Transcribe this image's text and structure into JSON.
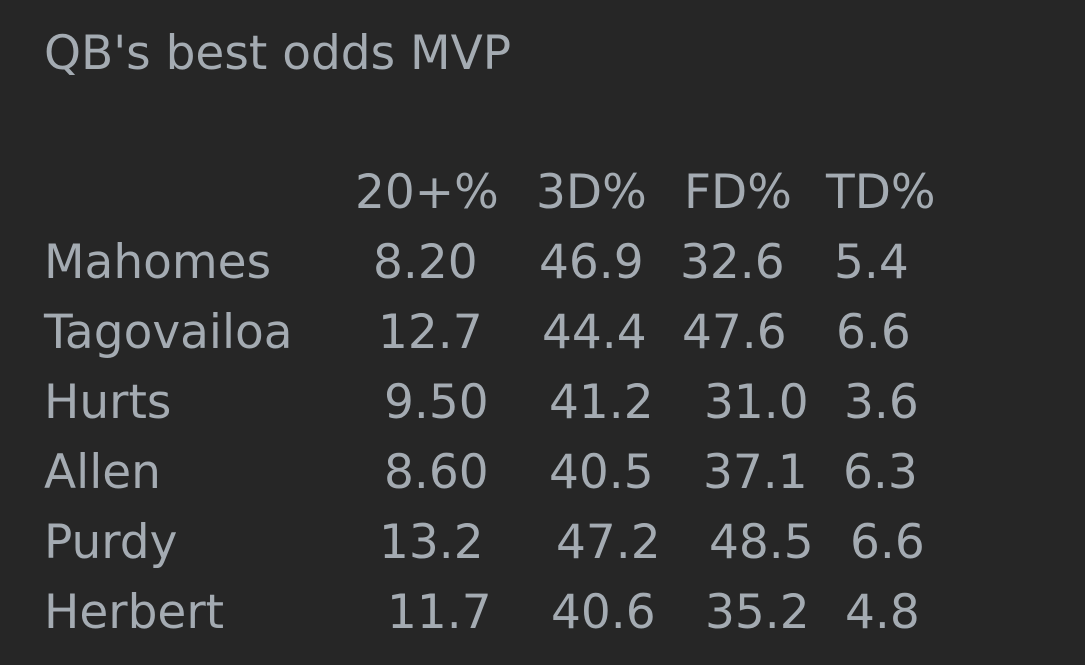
{
  "title": "QB's best odds MVP",
  "table": {
    "headers": [
      "20+%",
      "3D%",
      "FD%",
      "TD%"
    ],
    "rows": [
      {
        "name": "Mahomes",
        "values": [
          "8.20",
          "46.9",
          "32.6",
          "5.4"
        ]
      },
      {
        "name": "Tagovailoa",
        "values": [
          "12.7",
          "44.4",
          "47.6",
          "6.6"
        ]
      },
      {
        "name": "Hurts",
        "values": [
          "9.50",
          "41.2",
          "31.0",
          "3.6"
        ]
      },
      {
        "name": "Allen",
        "values": [
          "8.60",
          "40.5",
          "37.1",
          "6.3"
        ]
      },
      {
        "name": "Purdy",
        "values": [
          "13.2",
          "47.2",
          "48.5",
          "6.6"
        ]
      },
      {
        "name": "Herbert",
        "values": [
          "11.7",
          "40.6",
          "35.2",
          "4.8"
        ]
      }
    ]
  }
}
